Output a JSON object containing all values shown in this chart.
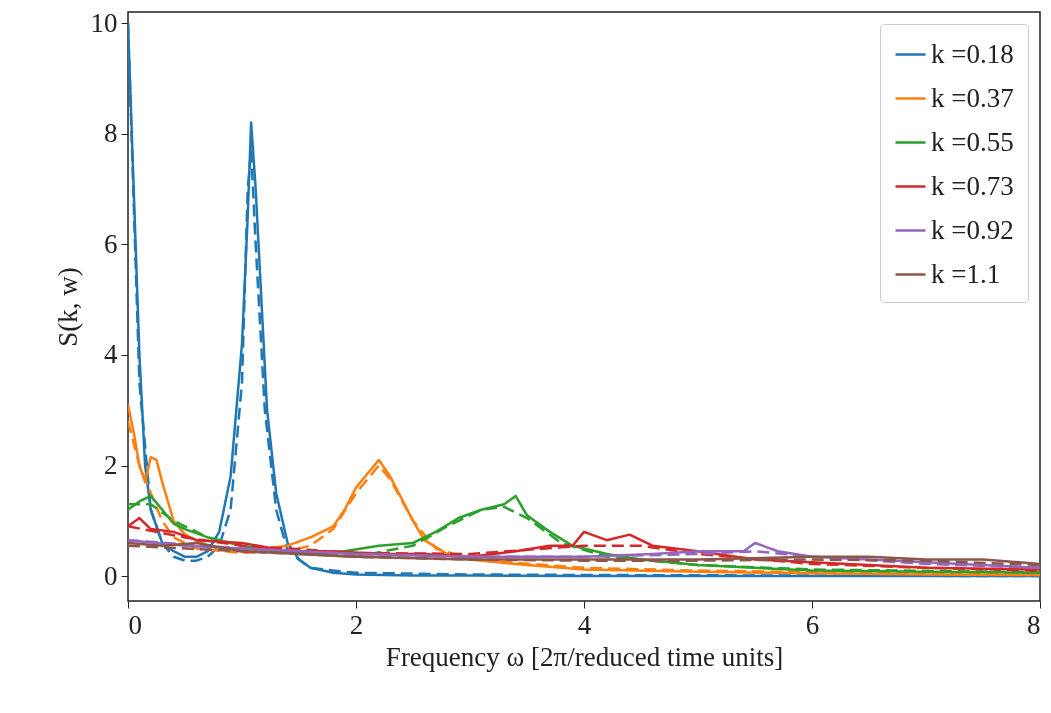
{
  "chart_data": {
    "type": "line",
    "xlabel": "Frequency ω [2π/reduced time units]",
    "ylabel": "S(k, w)",
    "xlim": [
      0,
      8
    ],
    "ylim": [
      -0.45,
      10.2
    ],
    "xticks": [
      0,
      2,
      4,
      6,
      8
    ],
    "yticks": [
      0,
      2,
      4,
      6,
      8,
      10
    ],
    "grid": false,
    "legend": "top right",
    "series": [
      {
        "name": "k =0.18",
        "color": "#1f77b4",
        "line_style": "solid",
        "x": [
          0,
          0.05,
          0.1,
          0.15,
          0.2,
          0.3,
          0.4,
          0.5,
          0.6,
          0.7,
          0.8,
          0.9,
          0.95,
          1.0,
          1.05,
          1.08,
          1.12,
          1.17,
          1.22,
          1.3,
          1.4,
          1.5,
          1.6,
          1.8,
          2.0,
          2.5,
          3,
          4,
          5,
          6,
          7,
          8
        ],
        "values": [
          10.0,
          7,
          4,
          2,
          1.2,
          0.6,
          0.45,
          0.35,
          0.35,
          0.45,
          0.8,
          1.8,
          3,
          4.2,
          6.5,
          8.2,
          7,
          5,
          3,
          1.5,
          0.6,
          0.3,
          0.15,
          0.06,
          0.03,
          0.01,
          0.01,
          0,
          0,
          0,
          0,
          0
        ]
      },
      {
        "color": "#1f77b4",
        "line_style": "dashed",
        "x": [
          0,
          0.1,
          0.2,
          0.3,
          0.4,
          0.5,
          0.6,
          0.7,
          0.8,
          0.9,
          1.0,
          1.05,
          1.08,
          1.12,
          1.2,
          1.3,
          1.4,
          1.6,
          1.8,
          2,
          3,
          4,
          6,
          8
        ],
        "values": [
          10,
          3.5,
          1.2,
          0.6,
          0.35,
          0.28,
          0.28,
          0.35,
          0.55,
          1.2,
          3.5,
          7.0,
          7.7,
          6,
          3,
          1.2,
          0.45,
          0.15,
          0.1,
          0.06,
          0.03,
          0.02,
          0.01,
          0
        ]
      },
      {
        "name": "k =0.37",
        "color": "#ff7f0e",
        "line_style": "solid",
        "x": [
          0,
          0.05,
          0.1,
          0.15,
          0.2,
          0.25,
          0.3,
          0.4,
          0.5,
          0.7,
          1.0,
          1.4,
          1.6,
          1.8,
          1.9,
          2.0,
          2.1,
          2.2,
          2.3,
          2.4,
          2.5,
          2.6,
          2.8,
          3,
          3.5,
          4,
          5,
          6,
          7,
          8
        ],
        "values": [
          3.1,
          2.6,
          2.0,
          1.7,
          2.15,
          2.1,
          1.7,
          1.0,
          0.75,
          0.55,
          0.45,
          0.55,
          0.7,
          0.9,
          1.2,
          1.6,
          1.85,
          2.1,
          1.8,
          1.4,
          1.0,
          0.65,
          0.4,
          0.3,
          0.2,
          0.12,
          0.08,
          0.05,
          0.03,
          0.02
        ]
      },
      {
        "color": "#ff7f0e",
        "line_style": "dashed",
        "x": [
          0,
          0.1,
          0.2,
          0.3,
          0.4,
          0.6,
          1.0,
          1.4,
          1.6,
          1.8,
          2.0,
          2.2,
          2.3,
          2.5,
          2.7,
          3,
          4,
          5,
          6,
          8
        ],
        "values": [
          2.8,
          2.0,
          1.5,
          1.0,
          0.7,
          0.5,
          0.42,
          0.45,
          0.55,
          0.85,
          1.5,
          2.0,
          1.75,
          1.0,
          0.5,
          0.3,
          0.15,
          0.1,
          0.07,
          0.03
        ]
      },
      {
        "name": "k =0.55",
        "color": "#2ca02c",
        "line_style": "solid",
        "x": [
          0,
          0.1,
          0.2,
          0.3,
          0.4,
          0.5,
          0.7,
          1.0,
          1.3,
          1.6,
          1.9,
          2.2,
          2.5,
          2.7,
          2.9,
          3.1,
          3.3,
          3.4,
          3.5,
          3.7,
          3.9,
          4.2,
          4.5,
          5,
          6,
          7,
          8
        ],
        "values": [
          1.2,
          1.35,
          1.45,
          1.2,
          0.95,
          0.85,
          0.7,
          0.55,
          0.45,
          0.4,
          0.45,
          0.55,
          0.6,
          0.8,
          1.05,
          1.2,
          1.3,
          1.45,
          1.1,
          0.8,
          0.55,
          0.4,
          0.3,
          0.2,
          0.1,
          0.08,
          0.06
        ]
      },
      {
        "color": "#2ca02c",
        "line_style": "dashed",
        "x": [
          0,
          0.2,
          0.4,
          0.7,
          1.0,
          1.5,
          2.0,
          2.5,
          2.8,
          3.1,
          3.3,
          3.5,
          3.8,
          4.2,
          5,
          6,
          8
        ],
        "values": [
          1.3,
          1.3,
          1.0,
          0.7,
          0.55,
          0.4,
          0.35,
          0.55,
          0.9,
          1.2,
          1.25,
          1.05,
          0.6,
          0.35,
          0.2,
          0.12,
          0.07
        ]
      },
      {
        "name": "k =0.73",
        "color": "#d62728",
        "line_style": "solid",
        "x": [
          0,
          0.1,
          0.2,
          0.4,
          0.6,
          1.0,
          1.4,
          1.8,
          2.2,
          2.6,
          3.0,
          3.4,
          3.7,
          3.9,
          4.0,
          4.2,
          4.4,
          4.6,
          5.0,
          5.5,
          6,
          7,
          8
        ],
        "values": [
          0.9,
          1.05,
          0.85,
          0.8,
          0.65,
          0.6,
          0.45,
          0.45,
          0.4,
          0.4,
          0.35,
          0.45,
          0.55,
          0.55,
          0.8,
          0.65,
          0.75,
          0.55,
          0.45,
          0.3,
          0.25,
          0.15,
          0.12
        ]
      },
      {
        "color": "#d62728",
        "line_style": "dashed",
        "x": [
          0,
          0.5,
          1,
          2,
          3,
          4,
          4.5,
          5,
          6,
          7,
          8
        ],
        "values": [
          0.9,
          0.7,
          0.55,
          0.42,
          0.4,
          0.55,
          0.55,
          0.4,
          0.22,
          0.15,
          0.1
        ]
      },
      {
        "name": "k =0.92",
        "color": "#9467bd",
        "line_style": "solid",
        "x": [
          0,
          0.5,
          1,
          2,
          3,
          4,
          4.6,
          5.0,
          5.4,
          5.5,
          5.7,
          6,
          7,
          8
        ],
        "values": [
          0.65,
          0.55,
          0.5,
          0.4,
          0.35,
          0.35,
          0.4,
          0.45,
          0.45,
          0.6,
          0.45,
          0.35,
          0.25,
          0.15
        ]
      },
      {
        "color": "#9467bd",
        "line_style": "dashed",
        "x": [
          0,
          1,
          2,
          3,
          4,
          5,
          5.5,
          6,
          7,
          8
        ],
        "values": [
          0.65,
          0.5,
          0.4,
          0.35,
          0.35,
          0.4,
          0.45,
          0.35,
          0.22,
          0.15
        ]
      },
      {
        "name": "k =1.1",
        "color": "#8c564b",
        "line_style": "solid",
        "x": [
          0,
          0.3,
          0.6,
          1,
          2,
          3,
          4,
          5,
          6,
          6.5,
          7,
          7.5,
          8
        ],
        "values": [
          0.6,
          0.55,
          0.6,
          0.45,
          0.35,
          0.3,
          0.3,
          0.3,
          0.35,
          0.35,
          0.3,
          0.3,
          0.22
        ]
      },
      {
        "color": "#8c564b",
        "line_style": "dashed",
        "x": [
          0,
          1,
          2,
          3,
          4,
          5,
          6,
          7,
          8
        ],
        "values": [
          0.55,
          0.45,
          0.35,
          0.3,
          0.28,
          0.28,
          0.3,
          0.28,
          0.2
        ]
      }
    ]
  }
}
